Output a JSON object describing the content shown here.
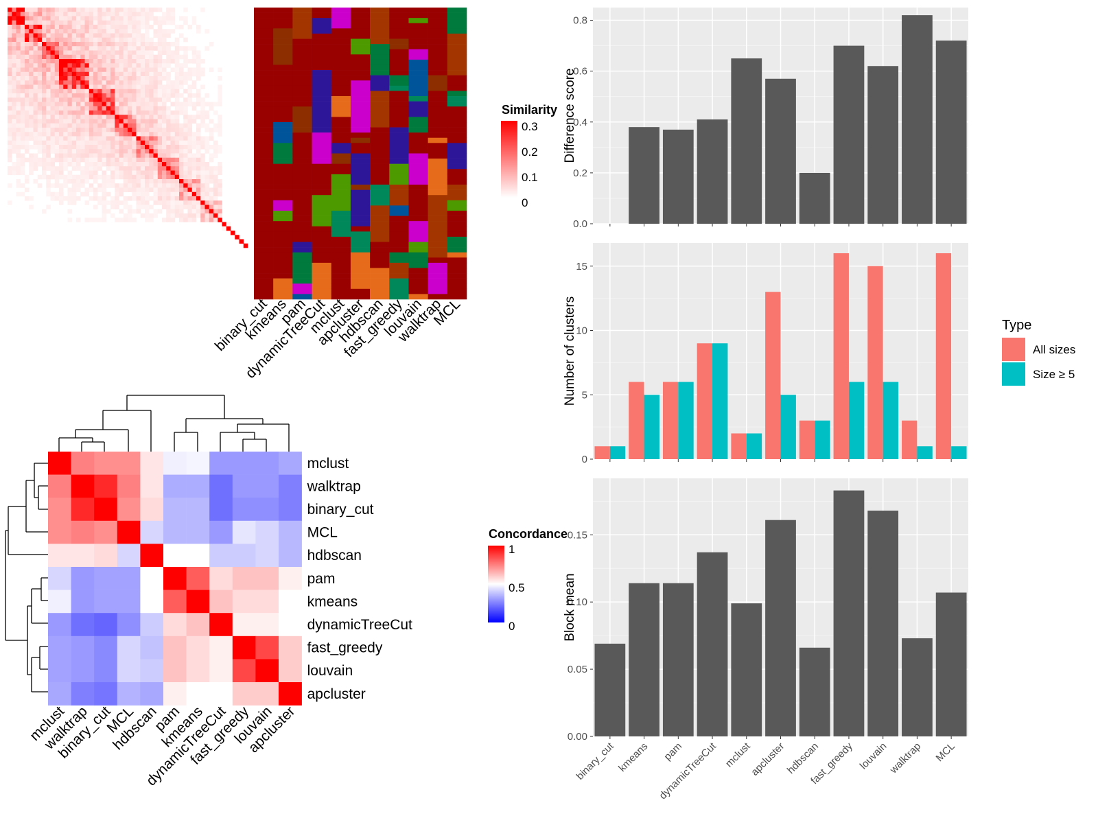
{
  "methods": [
    "binary_cut",
    "kmeans",
    "pam",
    "dynamicTreeCut",
    "mclust",
    "apcluster",
    "hdbscan",
    "fast_greedy",
    "louvain",
    "walktrap",
    "MCL"
  ],
  "similarity_legend": {
    "title": "Similarity",
    "ticks": [
      "0.3",
      "0.2",
      "0.1",
      "0"
    ],
    "colors": [
      "#ffffff",
      "#ff0000"
    ]
  },
  "concordance_legend": {
    "title": "Concordance",
    "ticks": [
      "1",
      "0.5",
      "0"
    ],
    "colors": [
      "#0000ff",
      "#ffffff",
      "#ff0000"
    ]
  },
  "concordance_order": [
    "mclust",
    "walktrap",
    "binary_cut",
    "MCL",
    "hdbscan",
    "pam",
    "kmeans",
    "dynamicTreeCut",
    "fast_greedy",
    "louvain",
    "apcluster"
  ],
  "concordance_matrix": [
    [
      1.0,
      0.75,
      0.72,
      0.72,
      0.55,
      0.47,
      0.48,
      0.3,
      0.3,
      0.3,
      0.33
    ],
    [
      0.75,
      1.0,
      0.92,
      0.75,
      0.55,
      0.34,
      0.34,
      0.22,
      0.3,
      0.3,
      0.25
    ],
    [
      0.72,
      0.92,
      1.0,
      0.72,
      0.57,
      0.36,
      0.36,
      0.22,
      0.28,
      0.28,
      0.25
    ],
    [
      0.72,
      0.75,
      0.72,
      1.0,
      0.42,
      0.36,
      0.36,
      0.3,
      0.45,
      0.42,
      0.36
    ],
    [
      0.55,
      0.55,
      0.57,
      0.42,
      1.0,
      0.5,
      0.5,
      0.4,
      0.4,
      0.42,
      0.36
    ],
    [
      0.42,
      0.3,
      0.32,
      0.32,
      0.5,
      1.0,
      0.82,
      0.57,
      0.62,
      0.62,
      0.53
    ],
    [
      0.47,
      0.3,
      0.32,
      0.32,
      0.5,
      0.82,
      1.0,
      0.62,
      0.57,
      0.57,
      0.5
    ],
    [
      0.3,
      0.22,
      0.2,
      0.28,
      0.4,
      0.57,
      0.62,
      1.0,
      0.53,
      0.53,
      0.5
    ],
    [
      0.32,
      0.3,
      0.27,
      0.42,
      0.38,
      0.62,
      0.57,
      0.53,
      1.0,
      0.86,
      0.6
    ],
    [
      0.32,
      0.3,
      0.27,
      0.42,
      0.4,
      0.62,
      0.57,
      0.53,
      0.86,
      1.0,
      0.6
    ],
    [
      0.33,
      0.25,
      0.23,
      0.35,
      0.33,
      0.53,
      0.5,
      0.5,
      0.6,
      0.6,
      1.0
    ]
  ],
  "chart_data": [
    {
      "type": "bar",
      "categories": [
        "binary_cut",
        "kmeans",
        "pam",
        "dynamicTreeCut",
        "mclust",
        "apcluster",
        "hdbscan",
        "fast_greedy",
        "louvain",
        "walktrap",
        "MCL"
      ],
      "values": [
        0,
        0.38,
        0.37,
        0.41,
        0.65,
        0.57,
        0.2,
        0.7,
        0.62,
        0.82,
        0.72
      ],
      "ylabel": "Difference score",
      "ylim": [
        0,
        0.85
      ],
      "yticks": [
        "0.0",
        "0.2",
        "0.4",
        "0.6",
        "0.8"
      ],
      "bar_color": "#595959"
    },
    {
      "type": "bar",
      "categories": [
        "binary_cut",
        "kmeans",
        "pam",
        "dynamicTreeCut",
        "mclust",
        "apcluster",
        "hdbscan",
        "fast_greedy",
        "louvain",
        "walktrap",
        "MCL"
      ],
      "series": [
        {
          "name": "All sizes",
          "color": "#f8766d",
          "values": [
            1,
            6,
            6,
            9,
            2,
            13,
            3,
            16,
            15,
            3,
            16
          ]
        },
        {
          "name": "Size ≥ 5",
          "color": "#00bfc4",
          "values": [
            1,
            5,
            6,
            9,
            2,
            5,
            3,
            6,
            6,
            1,
            1
          ]
        }
      ],
      "ylabel": "Number of clusters",
      "ylim": [
        0,
        16.8
      ],
      "yticks": [
        "0",
        "5",
        "10",
        "15"
      ],
      "legend_title": "Type",
      "legend_position": "right"
    },
    {
      "type": "bar",
      "categories": [
        "binary_cut",
        "kmeans",
        "pam",
        "dynamicTreeCut",
        "mclust",
        "apcluster",
        "hdbscan",
        "fast_greedy",
        "louvain",
        "walktrap",
        "MCL"
      ],
      "values": [
        0.069,
        0.114,
        0.114,
        0.137,
        0.099,
        0.161,
        0.066,
        0.183,
        0.168,
        0.073,
        0.107
      ],
      "ylabel": "Block mean",
      "ylim": [
        0,
        0.192
      ],
      "yticks": [
        "0.00",
        "0.05",
        "0.10",
        "0.15"
      ],
      "bar_color": "#595959"
    }
  ]
}
